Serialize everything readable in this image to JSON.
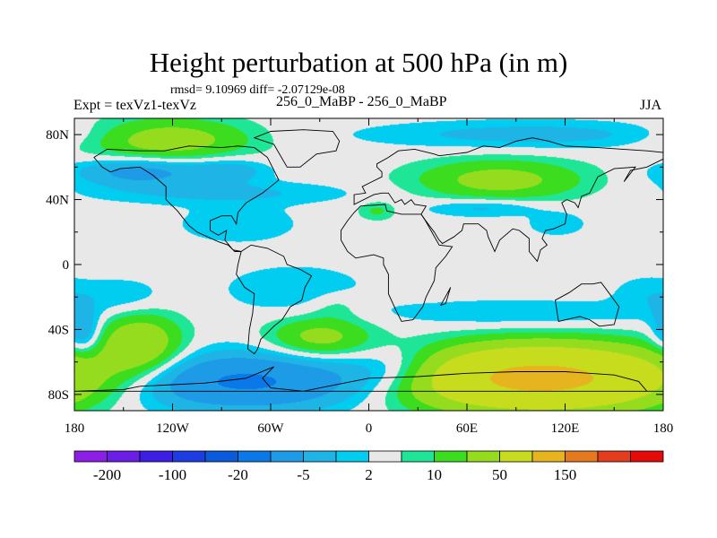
{
  "title": "Height perturbation at 500 hPa (in m)",
  "stats_text": "rmsd= 9.10969 diff= -2.07129e-08",
  "left_label": "Expt = texVz1-texVz",
  "center_label": "256_0_MaBP - 256_0_MaBP",
  "right_label": "JJA",
  "chart_data": {
    "type": "heatmap",
    "title": "Height perturbation at 500 hPa (in m)",
    "xlabel": "",
    "ylabel": "",
    "xlim": [
      -180,
      180
    ],
    "ylim": [
      -90,
      90
    ],
    "x_ticks": [
      {
        "value": -180,
        "label": "180"
      },
      {
        "value": -120,
        "label": "120W"
      },
      {
        "value": -60,
        "label": "60W"
      },
      {
        "value": 0,
        "label": "0"
      },
      {
        "value": 60,
        "label": "60E"
      },
      {
        "value": 120,
        "label": "120E"
      },
      {
        "value": 180,
        "label": "180"
      }
    ],
    "y_ticks": [
      {
        "value": 80,
        "label": "80N"
      },
      {
        "value": 40,
        "label": "40N"
      },
      {
        "value": 0,
        "label": "0"
      },
      {
        "value": -40,
        "label": "40S"
      },
      {
        "value": -80,
        "label": "80S"
      }
    ],
    "levels": [
      -200,
      -150,
      -100,
      -50,
      -20,
      -10,
      -5,
      -2,
      2,
      5,
      10,
      20,
      50,
      100,
      150,
      200
    ],
    "colorbar_colors": [
      "#8c1ee6",
      "#6a1ee6",
      "#3c1ee6",
      "#1e3ce6",
      "#0a5adc",
      "#0a78e6",
      "#1e9be6",
      "#1eb4e6",
      "#00cdf0",
      "#e8e8e8",
      "#1ee696",
      "#3cdc1e",
      "#96dc1e",
      "#c8dc1e",
      "#e6b41e",
      "#e6781e",
      "#e63c1e",
      "#e60a0a"
    ],
    "colorbar_labels": [
      {
        "level": -200,
        "label": "-200"
      },
      {
        "level": -100,
        "label": "-100"
      },
      {
        "level": -20,
        "label": "-20"
      },
      {
        "level": -5,
        "label": "-5"
      },
      {
        "level": 2,
        "label": "2"
      },
      {
        "level": 10,
        "label": "10"
      },
      {
        "level": 50,
        "label": "50"
      },
      {
        "level": 150,
        "label": "150"
      }
    ],
    "field_features": [
      {
        "lon": -123,
        "lat": 77,
        "slon": 34,
        "slat": 9,
        "amp": 15
      },
      {
        "lon": -140,
        "lat": 57,
        "slon": 28,
        "slat": 6,
        "amp": -13
      },
      {
        "lon": -85,
        "lat": 58,
        "slon": 16,
        "slat": 5,
        "amp": -8
      },
      {
        "lon": -90,
        "lat": 44,
        "slon": 55,
        "slat": 5,
        "amp": -6
      },
      {
        "lon": 80,
        "lat": 52,
        "slon": 36,
        "slat": 9,
        "amp": 13
      },
      {
        "lon": 100,
        "lat": 80,
        "slon": 70,
        "slat": 6,
        "amp": -7
      },
      {
        "lon": 70,
        "lat": 35,
        "slon": 25,
        "slat": 4,
        "amp": -7
      },
      {
        "lon": 115,
        "lat": 25,
        "slon": 12,
        "slat": 5,
        "amp": -5
      },
      {
        "lon": 5,
        "lat": 33,
        "slon": 8,
        "slat": 4,
        "amp": 6
      },
      {
        "lon": -80,
        "lat": 25,
        "slon": 25,
        "slat": 8,
        "amp": -5
      },
      {
        "lon": -150,
        "lat": -20,
        "slon": 18,
        "slat": 8,
        "amp": -5
      },
      {
        "lon": -45,
        "lat": -15,
        "slon": 30,
        "slat": 10,
        "amp": -5
      },
      {
        "lon": 170,
        "lat": -18,
        "slon": 15,
        "slat": 8,
        "amp": -4
      },
      {
        "lon": -140,
        "lat": -50,
        "slon": 18,
        "slat": 14,
        "amp": 18
      },
      {
        "lon": -175,
        "lat": -42,
        "slon": 8,
        "slat": 10,
        "amp": -12
      },
      {
        "lon": -30,
        "lat": -45,
        "slon": 22,
        "slat": 9,
        "amp": 13
      },
      {
        "lon": -75,
        "lat": -72,
        "slon": 55,
        "slat": 12,
        "amp": -22
      },
      {
        "lon": 20,
        "lat": -65,
        "slon": 25,
        "slat": 10,
        "amp": -10
      },
      {
        "lon": 105,
        "lat": -70,
        "slon": 55,
        "slat": 13,
        "amp": 60
      },
      {
        "lon": 90,
        "lat": -30,
        "slon": 60,
        "slat": 6,
        "amp": -5
      },
      {
        "lon": -20,
        "lat": -25,
        "slon": 12,
        "slat": 6,
        "amp": 4
      }
    ],
    "continent_outlines": [
      [
        [
          -168,
          66
        ],
        [
          -160,
          71
        ],
        [
          -140,
          70
        ],
        [
          -125,
          70
        ],
        [
          -110,
          73
        ],
        [
          -90,
          72
        ],
        [
          -80,
          73
        ],
        [
          -70,
          72
        ],
        [
          -62,
          66
        ],
        [
          -55,
          52
        ],
        [
          -65,
          44
        ],
        [
          -75,
          38
        ],
        [
          -80,
          32
        ],
        [
          -81,
          25
        ],
        [
          -84,
          30
        ],
        [
          -90,
          30
        ],
        [
          -97,
          27
        ],
        [
          -97,
          21
        ],
        [
          -92,
          18
        ],
        [
          -87,
          21
        ],
        [
          -88,
          15
        ],
        [
          -83,
          9
        ],
        [
          -78,
          8
        ],
        [
          -82,
          8
        ],
        [
          -86,
          12
        ],
        [
          -92,
          14
        ],
        [
          -105,
          20
        ],
        [
          -110,
          24
        ],
        [
          -117,
          33
        ],
        [
          -124,
          40
        ],
        [
          -124,
          48
        ],
        [
          -132,
          55
        ],
        [
          -140,
          60
        ],
        [
          -152,
          59
        ],
        [
          -158,
          57
        ],
        [
          -163,
          60
        ],
        [
          -168,
          66
        ]
      ],
      [
        [
          -78,
          8
        ],
        [
          -72,
          12
        ],
        [
          -62,
          10
        ],
        [
          -52,
          5
        ],
        [
          -50,
          0
        ],
        [
          -42,
          -3
        ],
        [
          -35,
          -7
        ],
        [
          -39,
          -14
        ],
        [
          -41,
          -22
        ],
        [
          -48,
          -26
        ],
        [
          -53,
          -34
        ],
        [
          -58,
          -38
        ],
        [
          -62,
          -42
        ],
        [
          -66,
          -46
        ],
        [
          -68,
          -52
        ],
        [
          -70,
          -55
        ],
        [
          -74,
          -52
        ],
        [
          -73,
          -40
        ],
        [
          -71,
          -30
        ],
        [
          -70,
          -18
        ],
        [
          -76,
          -14
        ],
        [
          -81,
          -6
        ],
        [
          -80,
          0
        ],
        [
          -78,
          8
        ]
      ],
      [
        [
          -50,
          60
        ],
        [
          -42,
          60
        ],
        [
          -32,
          68
        ],
        [
          -20,
          70
        ],
        [
          -18,
          76
        ],
        [
          -22,
          82
        ],
        [
          -40,
          83
        ],
        [
          -60,
          82
        ],
        [
          -70,
          78
        ],
        [
          -58,
          74
        ],
        [
          -50,
          60
        ]
      ],
      [
        [
          -9,
          37
        ],
        [
          -9,
          43
        ],
        [
          -2,
          44
        ],
        [
          -4,
          48
        ],
        [
          2,
          51
        ],
        [
          8,
          54
        ],
        [
          8,
          57
        ],
        [
          5,
          60
        ],
        [
          5,
          62
        ],
        [
          12,
          66
        ],
        [
          18,
          70
        ],
        [
          28,
          71
        ],
        [
          40,
          68
        ],
        [
          43,
          67
        ],
        [
          60,
          69
        ],
        [
          70,
          73
        ],
        [
          80,
          72
        ],
        [
          90,
          76
        ],
        [
          100,
          78
        ],
        [
          110,
          76
        ],
        [
          120,
          73
        ],
        [
          140,
          72
        ],
        [
          155,
          71
        ],
        [
          170,
          70
        ],
        [
          180,
          69
        ],
        [
          180,
          65
        ],
        [
          170,
          60
        ],
        [
          160,
          58
        ],
        [
          156,
          51
        ],
        [
          163,
          60
        ],
        [
          150,
          59
        ],
        [
          140,
          54
        ],
        [
          135,
          44
        ],
        [
          130,
          42
        ],
        [
          128,
          35
        ],
        [
          126,
          38
        ],
        [
          121,
          40
        ],
        [
          118,
          38
        ],
        [
          121,
          31
        ],
        [
          120,
          25
        ],
        [
          113,
          22
        ],
        [
          108,
          21
        ],
        [
          106,
          16
        ],
        [
          109,
          12
        ],
        [
          105,
          9
        ],
        [
          103,
          2
        ],
        [
          98,
          8
        ],
        [
          98,
          16
        ],
        [
          92,
          21
        ],
        [
          88,
          22
        ],
        [
          80,
          15
        ],
        [
          77,
          8
        ],
        [
          73,
          17
        ],
        [
          72,
          21
        ],
        [
          67,
          25
        ],
        [
          58,
          25
        ],
        [
          57,
          21
        ],
        [
          52,
          17
        ],
        [
          45,
          13
        ],
        [
          43,
          15
        ],
        [
          40,
          20
        ],
        [
          34,
          28
        ],
        [
          32,
          31
        ],
        [
          35,
          36
        ],
        [
          28,
          37
        ],
        [
          26,
          40
        ],
        [
          22,
          37
        ],
        [
          20,
          40
        ],
        [
          16,
          38
        ],
        [
          12,
          44
        ],
        [
          8,
          44
        ],
        [
          3,
          43
        ],
        [
          -9,
          37
        ]
      ],
      [
        [
          -17,
          15
        ],
        [
          -17,
          21
        ],
        [
          -13,
          27
        ],
        [
          -9,
          32
        ],
        [
          -5,
          36
        ],
        [
          10,
          37
        ],
        [
          11,
          33
        ],
        [
          20,
          31
        ],
        [
          32,
          31
        ],
        [
          34,
          28
        ],
        [
          38,
          21
        ],
        [
          43,
          12
        ],
        [
          51,
          11
        ],
        [
          47,
          5
        ],
        [
          41,
          -2
        ],
        [
          40,
          -10
        ],
        [
          35,
          -20
        ],
        [
          33,
          -26
        ],
        [
          27,
          -34
        ],
        [
          20,
          -35
        ],
        [
          17,
          -29
        ],
        [
          12,
          -18
        ],
        [
          12,
          -6
        ],
        [
          9,
          0
        ],
        [
          9,
          4
        ],
        [
          3,
          6
        ],
        [
          -8,
          4
        ],
        [
          -13,
          8
        ],
        [
          -17,
          15
        ]
      ],
      [
        [
          114,
          -22
        ],
        [
          123,
          -17
        ],
        [
          130,
          -12
        ],
        [
          137,
          -12
        ],
        [
          142,
          -11
        ],
        [
          145,
          -15
        ],
        [
          153,
          -26
        ],
        [
          150,
          -37
        ],
        [
          141,
          -38
        ],
        [
          135,
          -34
        ],
        [
          129,
          -32
        ],
        [
          116,
          -35
        ],
        [
          114,
          -22
        ]
      ],
      [
        [
          44,
          -25
        ],
        [
          49,
          -16
        ],
        [
          50,
          -14
        ],
        [
          47,
          -24
        ],
        [
          44,
          -25
        ]
      ],
      [
        [
          -180,
          -78
        ],
        [
          -150,
          -77
        ],
        [
          -140,
          -75
        ],
        [
          -120,
          -74
        ],
        [
          -100,
          -73
        ],
        [
          -75,
          -70
        ],
        [
          -63,
          -65
        ],
        [
          -58,
          -63
        ],
        [
          -65,
          -70
        ],
        [
          -60,
          -76
        ],
        [
          -40,
          -78
        ],
        [
          -25,
          -75
        ],
        [
          0,
          -70
        ],
        [
          30,
          -69
        ],
        [
          60,
          -67
        ],
        [
          90,
          -66
        ],
        [
          120,
          -66
        ],
        [
          150,
          -68
        ],
        [
          165,
          -72
        ],
        [
          170,
          -78
        ],
        [
          180,
          -78
        ]
      ]
    ]
  }
}
